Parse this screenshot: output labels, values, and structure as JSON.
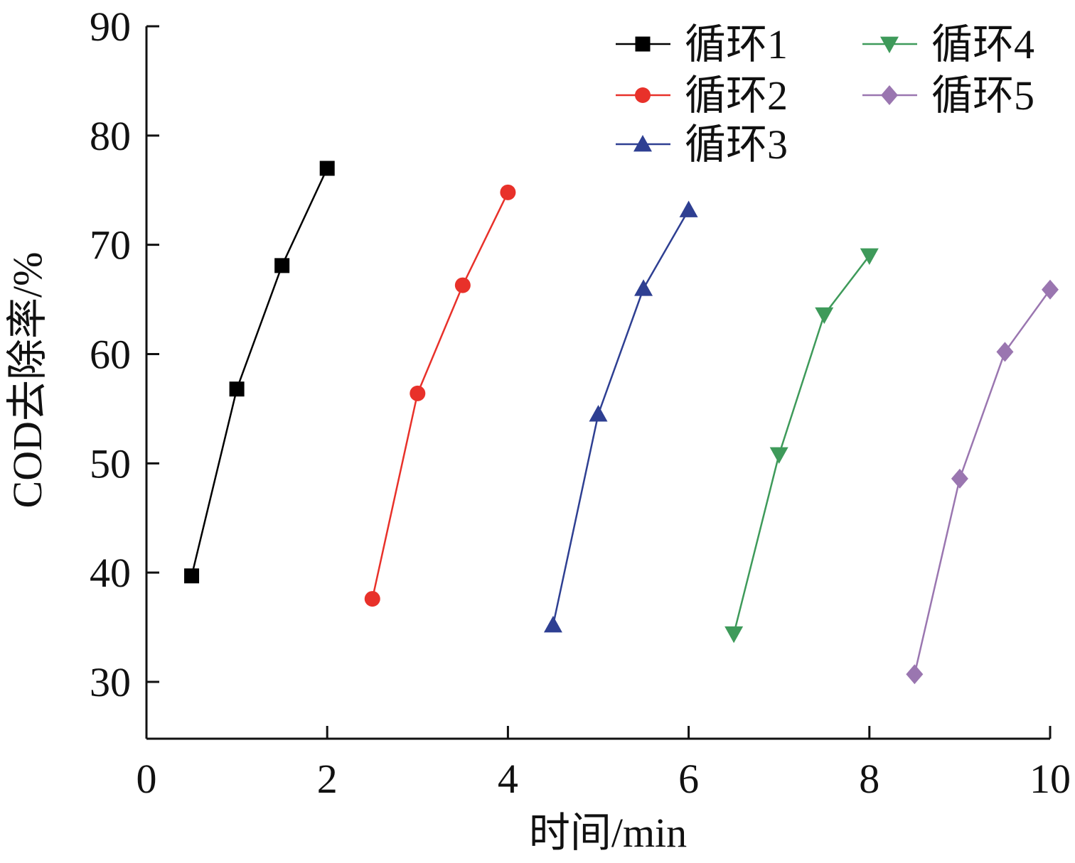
{
  "chart_data": {
    "type": "line",
    "xlabel": "时间/min",
    "ylabel": "COD去除率/%",
    "xlim": [
      0,
      10
    ],
    "ylim": [
      24.8,
      90
    ],
    "xticks": [
      0,
      2,
      4,
      6,
      8,
      10
    ],
    "yticks": [
      30,
      40,
      50,
      60,
      70,
      80,
      90
    ],
    "grid": false,
    "legend_position": "top-right",
    "series": [
      {
        "name": "循环1",
        "color": "#000000",
        "marker": "square",
        "x": [
          0.5,
          1.0,
          1.5,
          2.0
        ],
        "y": [
          39.7,
          56.8,
          68.1,
          77.0
        ]
      },
      {
        "name": "循环2",
        "color": "#e8312a",
        "marker": "circle",
        "x": [
          2.5,
          3.0,
          3.5,
          4.0
        ],
        "y": [
          37.6,
          56.4,
          66.3,
          74.8
        ]
      },
      {
        "name": "循环3",
        "color": "#2e3f92",
        "marker": "triangle-up",
        "x": [
          4.5,
          5.0,
          5.5,
          6.0
        ],
        "y": [
          35.2,
          54.5,
          66.0,
          73.2
        ]
      },
      {
        "name": "循环4",
        "color": "#3e9a5a",
        "marker": "triangle-down",
        "x": [
          6.5,
          7.0,
          7.5,
          8.0
        ],
        "y": [
          34.4,
          50.8,
          63.6,
          69.0
        ]
      },
      {
        "name": "循环5",
        "color": "#9a76b0",
        "marker": "diamond",
        "x": [
          8.5,
          9.0,
          9.5,
          10.0
        ],
        "y": [
          30.7,
          48.6,
          60.2,
          65.9
        ]
      }
    ]
  }
}
